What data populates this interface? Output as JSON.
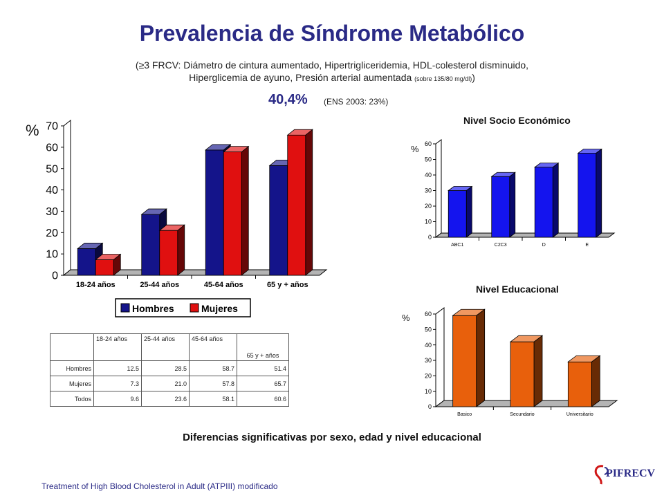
{
  "slide": {
    "title": "Prevalencia de Síndrome Metabólico",
    "subtitle_line1": "(≥3 FRCV: Diámetro de cintura aumentado, Hipertrigliceridemia, HDL-colesterol disminuido,",
    "subtitle_line2": "Hiperglicemia de ayuno, Presión arterial aumentada",
    "subtitle_small": "(sobre 135/80 mg/dl)",
    "subtitle_close": ")",
    "prevalence": "40,4%",
    "ens_note": "(ENS 2003: 23%)",
    "conclusion": "Diferencias significativas por sexo, edad y nivel educacional",
    "footer": "Treatment  of High Blood Cholesterol in Adult (ATPIII)   modificado",
    "logo_text": "PIFRECV"
  },
  "colors": {
    "title": "#2a2a86",
    "hombres": "#14148a",
    "mujeres": "#e01010",
    "nse": "#1414ee",
    "edu": "#e8600c"
  },
  "table": {
    "headers": [
      "",
      "18-24 años",
      "25-44 años",
      "45-64 años",
      "65 y + años"
    ],
    "rows": [
      {
        "label": "Hombres",
        "values": [
          "12.5",
          "28.5",
          "58.7",
          "51.4"
        ]
      },
      {
        "label": "Mujeres",
        "values": [
          "7.3",
          "21.0",
          "57.8",
          "65.7"
        ]
      },
      {
        "label": "Todos",
        "values": [
          "9.6",
          "23.6",
          "58.1",
          "60.6"
        ]
      }
    ]
  },
  "chart_data": [
    {
      "type": "bar",
      "title": "",
      "ylabel": "%",
      "categories": [
        "18-24 años",
        "25-44 años",
        "45-64 años",
        "65 y + años"
      ],
      "series": [
        {
          "name": "Hombres",
          "values": [
            12.5,
            28.5,
            58.7,
            51.4
          ]
        },
        {
          "name": "Mujeres",
          "values": [
            7.3,
            21.0,
            57.8,
            65.7
          ]
        }
      ],
      "ylim": [
        0,
        70
      ],
      "yticks": [
        0,
        10,
        20,
        30,
        40,
        50,
        60,
        70
      ],
      "legend": "bottom",
      "grid": false
    },
    {
      "type": "bar",
      "title": "Nivel Socio Económico",
      "ylabel": "%",
      "categories": [
        "ABC1",
        "C2C3",
        "D",
        "E"
      ],
      "values": [
        30,
        39,
        45,
        54
      ],
      "ylim": [
        0,
        60
      ],
      "yticks": [
        0,
        10,
        20,
        30,
        40,
        50,
        60
      ],
      "grid": false
    },
    {
      "type": "bar",
      "title": "Nivel Educacional",
      "ylabel": "%",
      "categories": [
        "Basico",
        "Secundario",
        "Universitario"
      ],
      "values": [
        59,
        42,
        29
      ],
      "ylim": [
        0,
        60
      ],
      "yticks": [
        0,
        10,
        20,
        30,
        40,
        50,
        60
      ],
      "grid": false
    }
  ]
}
